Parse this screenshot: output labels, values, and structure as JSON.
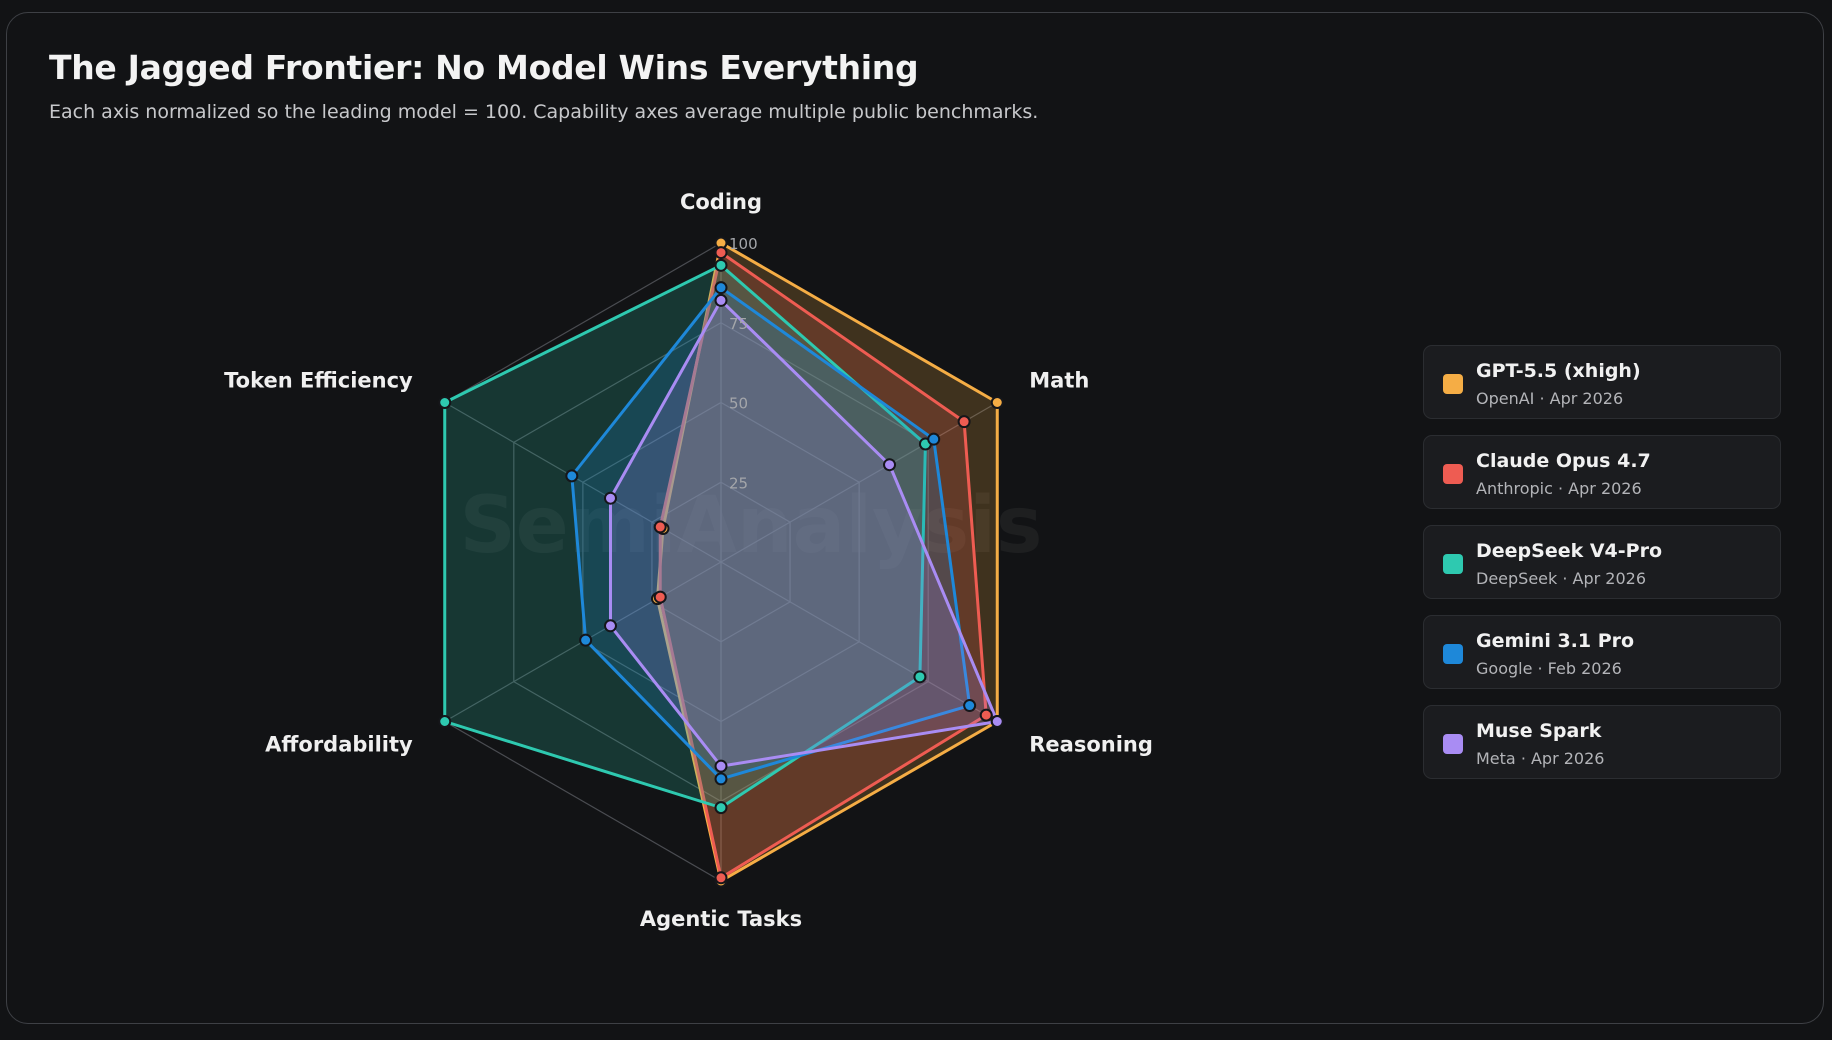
{
  "chart_data": {
    "type": "radar",
    "title": "The Jagged Frontier: No Model Wins Everything",
    "subtitle": "Each axis normalized so the leading model = 100. Capability axes average multiple public benchmarks.",
    "axes": [
      "Coding",
      "Math",
      "Reasoning",
      "Agentic Tasks",
      "Affordability",
      "Token Efficiency"
    ],
    "range": [
      0,
      100
    ],
    "ticks": [
      25,
      50,
      75,
      100
    ],
    "grid": true,
    "legend_position": "right",
    "watermark": "SemiAnalysis",
    "series": [
      {
        "name": "GPT-5.5 (xhigh)",
        "maker": "OpenAI · Apr 2026",
        "color": "#f5ad45",
        "values": [
          100,
          100,
          100,
          100,
          23,
          21
        ]
      },
      {
        "name": "Claude Opus 4.7",
        "maker": "Anthropic · Apr 2026",
        "color": "#ee5c52",
        "values": [
          97,
          88,
          96,
          99,
          22,
          22
        ]
      },
      {
        "name": "DeepSeek V4-Pro",
        "maker": "DeepSeek · Apr 2026",
        "color": "#2ec9b0",
        "values": [
          93,
          74,
          72,
          77,
          100,
          100
        ]
      },
      {
        "name": "Gemini 3.1 Pro",
        "maker": "Google · Feb 2026",
        "color": "#1e88d9",
        "values": [
          86,
          77,
          90,
          68,
          49,
          54
        ]
      },
      {
        "name": "Muse Spark",
        "maker": "Meta · Apr 2026",
        "color": "#a98cf3",
        "values": [
          82,
          61,
          100,
          64,
          40,
          40
        ]
      }
    ]
  }
}
